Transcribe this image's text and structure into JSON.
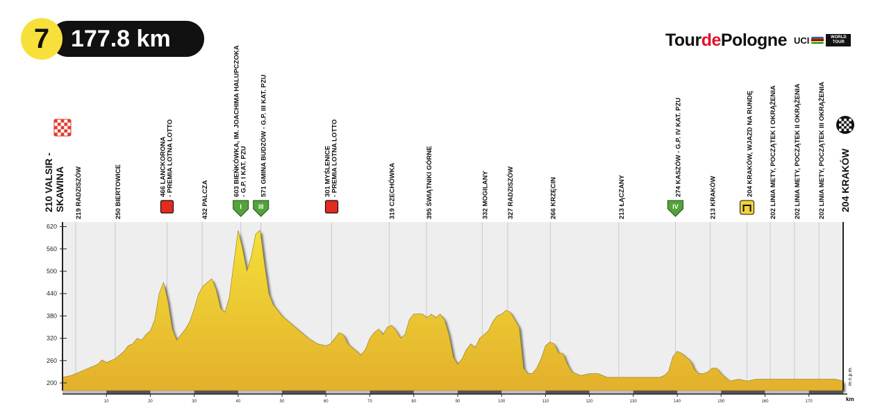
{
  "stage": {
    "number": "7",
    "distance": "177.8 km"
  },
  "brand": {
    "tour": "Tour",
    "de": "de",
    "pologne": "Pologne",
    "uci": "UCI",
    "world_tour": "WORLD TOUR"
  },
  "colors": {
    "profile_top": "#f4df3a",
    "profile_bottom": "#e3b02b",
    "climb_fill": "#dba01f",
    "sprint": "#e52b20",
    "kom": "#54a33a",
    "circuit": "#f2d23a",
    "axis": "#222222",
    "panel": "#eeeeee"
  },
  "chart_data": {
    "type": "area",
    "title": "177.8 km",
    "xlabel": "km",
    "ylabel": "m n.p.m.",
    "xlim": [
      0,
      177.8
    ],
    "ylim": [
      180,
      630
    ],
    "y_ticks": [
      200,
      260,
      320,
      380,
      440,
      500,
      560,
      620
    ],
    "y_tick_labels": [
      "200",
      "260",
      "320",
      "380",
      "440",
      "500",
      "560",
      "620"
    ],
    "x_ticks": [
      10,
      20,
      30,
      40,
      50,
      60,
      70,
      80,
      90,
      100,
      110,
      120,
      130,
      140,
      150,
      160,
      170
    ],
    "x_tick_labels": [
      "10",
      "20",
      "30",
      "40",
      "50",
      "60",
      "70",
      "80",
      "90",
      "100",
      "110",
      "120",
      "130",
      "140",
      "150",
      "160",
      "170"
    ],
    "grid": false,
    "series": [
      {
        "x": [
          0,
          2,
          4,
          6,
          8,
          9,
          10,
          12,
          14,
          15,
          16,
          17,
          18,
          19,
          20,
          21,
          22,
          23,
          24,
          25,
          26,
          27,
          28,
          29,
          30,
          31,
          32,
          33,
          34,
          35,
          36,
          37,
          38,
          39,
          40,
          41,
          42,
          43,
          44,
          45,
          46,
          47,
          48,
          49,
          50,
          52,
          54,
          56,
          58,
          60,
          61,
          62,
          63,
          64,
          65,
          66,
          67,
          68,
          69,
          70,
          71,
          72,
          73,
          74,
          75,
          76,
          77,
          78,
          79,
          80,
          81,
          82,
          83,
          84,
          85,
          86,
          87,
          88,
          89,
          90,
          91,
          92,
          93,
          94,
          95,
          96,
          97,
          98,
          99,
          100,
          101,
          102,
          103,
          104,
          105,
          106,
          107,
          108,
          109,
          110,
          111,
          112,
          113,
          114,
          115,
          116,
          117,
          118,
          120,
          122,
          124,
          126,
          128,
          130,
          132,
          134,
          136,
          137,
          138,
          139,
          140,
          141,
          142,
          143,
          144,
          145,
          146,
          147,
          148,
          149,
          150,
          151,
          152,
          154,
          156,
          158,
          160,
          162,
          164,
          166,
          168,
          170,
          172,
          174,
          176,
          177.8
        ],
        "y": [
          215,
          220,
          230,
          240,
          250,
          262,
          255,
          265,
          285,
          300,
          305,
          320,
          315,
          330,
          340,
          370,
          440,
          470,
          420,
          345,
          315,
          330,
          345,
          365,
          400,
          440,
          460,
          470,
          480,
          450,
          400,
          390,
          430,
          520,
          610,
          560,
          500,
          540,
          600,
          610,
          520,
          440,
          410,
          395,
          380,
          360,
          340,
          320,
          305,
          300,
          305,
          320,
          335,
          330,
          305,
          295,
          285,
          275,
          290,
          320,
          335,
          345,
          330,
          350,
          355,
          340,
          320,
          330,
          370,
          385,
          385,
          385,
          375,
          385,
          375,
          385,
          370,
          330,
          270,
          250,
          265,
          290,
          305,
          295,
          320,
          330,
          340,
          365,
          380,
          385,
          395,
          390,
          370,
          350,
          240,
          225,
          225,
          240,
          265,
          300,
          310,
          305,
          280,
          280,
          250,
          230,
          225,
          220,
          225,
          225,
          215,
          215,
          215,
          215,
          215,
          215,
          215,
          220,
          230,
          270,
          285,
          280,
          270,
          260,
          235,
          225,
          225,
          230,
          240,
          240,
          225,
          215,
          205,
          210,
          205,
          210,
          210,
          210,
          210,
          210,
          210,
          210,
          210,
          210,
          210,
          205
        ]
      }
    ],
    "start": {
      "elevation": "210",
      "name": "VALSIR - SKAWINA"
    },
    "finish": {
      "elevation": "204",
      "name": "KRAKÓW"
    },
    "waypoints": [
      {
        "km": 3,
        "text": "219 RADZISZÓW",
        "marker": "none"
      },
      {
        "km": 12,
        "text": "250 BIERTOWICE",
        "marker": "none"
      },
      {
        "km": 23.8,
        "text": "466 LANCKORONA\n- PREMIA LOTNA LOTTO",
        "marker": "sprint"
      },
      {
        "km": 31.8,
        "text": "432 PALCZA",
        "marker": "none"
      },
      {
        "km": 40.6,
        "text": "603 BIEŃKÓWKA, IM. JOACHIMA HALUPCZOKA\n- G.P. I KAT. PZU",
        "marker": "kom",
        "marker_label": "I"
      },
      {
        "km": 45.2,
        "text": "571 GMINA BUDZÓW - G.P. III KAT. PZU",
        "marker": "kom",
        "marker_label": "III"
      },
      {
        "km": 61.3,
        "text": "301 MYŚLENICE\n- PREMIA LOTNA LOTTO",
        "marker": "sprint"
      },
      {
        "km": 74.4,
        "text": "319 CZECHÓWKA",
        "marker": "none"
      },
      {
        "km": 82.9,
        "text": "395 ŚWIĄTNIKI GÓRNE",
        "marker": "none"
      },
      {
        "km": 95.6,
        "text": "332 MOGILANY",
        "marker": "none"
      },
      {
        "km": 101.4,
        "text": "327 RADZISZÓW",
        "marker": "none"
      },
      {
        "km": 111.1,
        "text": "266 KRZĘCIN",
        "marker": "none"
      },
      {
        "km": 126.7,
        "text": "213 ŁĄCZANY",
        "marker": "none"
      },
      {
        "km": 139.6,
        "text": "274 KASZÓW - G.P. IV KAT. PZU",
        "marker": "kom",
        "marker_label": "IV"
      },
      {
        "km": 147.5,
        "text": "213 KRAKÓW",
        "marker": "none"
      },
      {
        "km": 155.9,
        "text": "204 KRAKÓW, WJAZD NA RUNDĘ",
        "marker": "circuit"
      },
      {
        "km": 161.2,
        "text": "202 LINIA METY, POCZĄTEK I OKRĄŻENIA",
        "marker": "none"
      },
      {
        "km": 166.7,
        "text": "202 LINIA METY, POCZĄTEK II OKRĄŻENIA",
        "marker": "none"
      },
      {
        "km": 172.3,
        "text": "202 LINIA METY, POCZĄTEK III OKRĄŻENIA",
        "marker": "none"
      }
    ]
  }
}
